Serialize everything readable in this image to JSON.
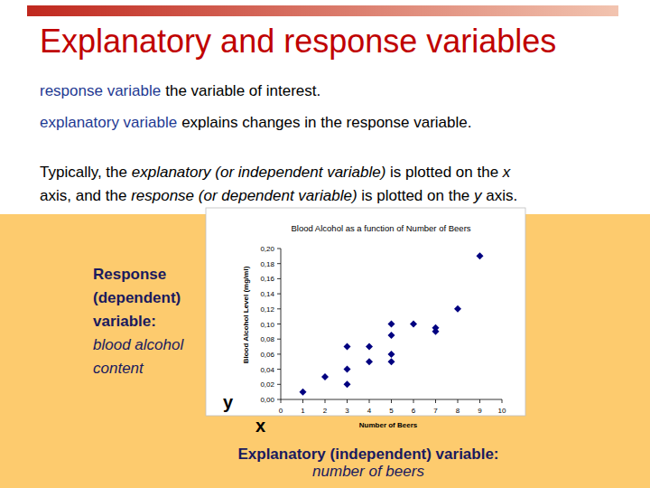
{
  "slide": {
    "title": "Explanatory and response variables",
    "definitions": [
      {
        "term": "response variable",
        "text": "the variable of interest."
      },
      {
        "term": "explanatory variable",
        "text": "explains changes in the response variable."
      }
    ],
    "paragraph": [
      [
        {
          "text": "Typically, the ",
          "italic": false
        },
        {
          "text": "explanatory (or independent variable)",
          "italic": true
        },
        {
          "text": " is plotted on the ",
          "italic": false
        },
        {
          "text": "x",
          "italic": true
        }
      ],
      [
        {
          "text": "axis, and the ",
          "italic": false
        },
        {
          "text": "response (or dependent variable)",
          "italic": true
        },
        {
          "text": " is plotted on the ",
          "italic": false
        },
        {
          "text": "y",
          "italic": true
        },
        {
          "text": " axis.",
          "italic": false
        }
      ]
    ],
    "response_note": {
      "heading": [
        "Response",
        "(dependent)",
        "variable:"
      ],
      "detail": [
        "blood alcohol",
        "content"
      ]
    },
    "y_symbol": "y",
    "x_symbol": "x",
    "explanatory_note": {
      "heading": "Explanatory (independent) variable:",
      "detail": "number of beers"
    }
  },
  "chart_data": {
    "type": "scatter",
    "title": "Blood Alcohol as a function of Number of Beers",
    "x_label": "Number of Beers",
    "y_label": "Blood Alcohol Level (mg/ml)",
    "x": [
      1,
      2,
      3,
      3,
      3,
      4,
      4,
      5,
      5,
      5,
      5,
      6,
      7,
      7,
      8,
      9
    ],
    "values": [
      0.01,
      0.03,
      0.07,
      0.04,
      0.02,
      0.07,
      0.05,
      0.1,
      0.085,
      0.06,
      0.05,
      0.1,
      0.095,
      0.09,
      0.12,
      0.19
    ],
    "color": "#000080",
    "marker": "diamond",
    "xlim": [
      0,
      10
    ],
    "ylim": [
      0,
      0.2
    ],
    "xticks": [
      0,
      1,
      2,
      3,
      4,
      5,
      6,
      7,
      8,
      9,
      10
    ],
    "yticks": [
      {
        "value": 0,
        "label": "0,00"
      },
      {
        "value": 0.02,
        "label": "0,02"
      },
      {
        "value": 0.04,
        "label": "0,04"
      },
      {
        "value": 0.06,
        "label": "0,06"
      },
      {
        "value": 0.08,
        "label": "0,08"
      },
      {
        "value": 0.1,
        "label": "0,10"
      },
      {
        "value": 0.12,
        "label": "0,12"
      },
      {
        "value": 0.14,
        "label": "0,14"
      },
      {
        "value": 0.16,
        "label": "0,16"
      },
      {
        "value": 0.18,
        "label": "0,18"
      },
      {
        "value": 0.2,
        "label": "0,20"
      }
    ]
  }
}
